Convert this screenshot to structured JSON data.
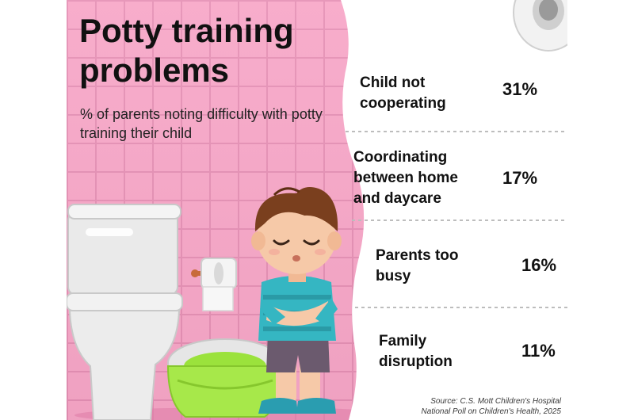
{
  "header": {
    "title": "Potty training problems",
    "subtitle": "% of parents noting difficulty with potty training their child"
  },
  "chart_data": {
    "type": "table",
    "title": "Potty training problems",
    "subtitle": "% of parents noting difficulty with potty training their child",
    "categories": [
      "Child not cooperating",
      "Coordinating between home and daycare",
      "Parents too busy",
      "Family disruption"
    ],
    "values": [
      31,
      17,
      16,
      11
    ],
    "value_labels": [
      "31%",
      "17%",
      "16%",
      "11%"
    ],
    "unit": "%"
  },
  "footer": {
    "source_line1": "Source: C.S. Mott Children's Hospital",
    "source_line2": "National Poll on Children's Health, 2025"
  },
  "colors": {
    "wall": "#f7a6c7",
    "grout": "#e58fb4",
    "paper": "#ffffff",
    "shirt": "#35b6c2",
    "potty": "#9be23c"
  },
  "icons": [
    "toilet-icon",
    "toilet-paper-holder-icon",
    "training-potty-icon",
    "child-illustration",
    "toilet-paper-roll-icon"
  ]
}
